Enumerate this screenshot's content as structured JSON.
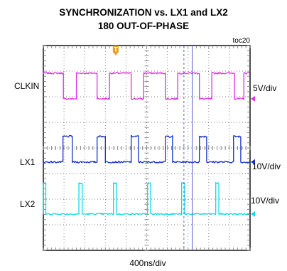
{
  "chart_data": {
    "type": "line",
    "title": "SYNCHRONIZATION vs. LX1 and LX2",
    "subtitle": "180 OUT-OF-PHASE",
    "figure_id": "toc20",
    "xlabel": "400ns/div",
    "x_divisions": 10,
    "y_divisions": 8,
    "grid": true,
    "colors": {
      "grid": "#7f7f7f",
      "frame": "#000000",
      "clkin": "#e030e0",
      "lx1": "#1530c8",
      "lx2": "#10d8e8",
      "trigger": "#e8a020",
      "cursor": "#5a5ad0"
    },
    "trigger_marker": {
      "label": "T",
      "x_div": 3.5
    },
    "cursors_x_div": [
      6.8,
      7.2
    ],
    "series": [
      {
        "name": "CLKIN",
        "scale": "5V/div",
        "color": "#e030e0",
        "baseline_div": 5.92,
        "amplitude_div": 1.0,
        "noise_div": 0.03,
        "segments": [
          {
            "x": 0,
            "level": 1
          },
          {
            "x": 0.97,
            "level": 0
          },
          {
            "x": 1.6,
            "level": 1
          },
          {
            "x": 2.6,
            "level": 0
          },
          {
            "x": 3.2,
            "level": 1
          },
          {
            "x": 4.25,
            "level": 0
          },
          {
            "x": 4.85,
            "level": 1
          },
          {
            "x": 5.9,
            "level": 0
          },
          {
            "x": 6.5,
            "level": 1
          },
          {
            "x": 7.55,
            "level": 0
          },
          {
            "x": 8.15,
            "level": 1
          },
          {
            "x": 9.25,
            "level": 0
          },
          {
            "x": 9.7,
            "level": 1
          }
        ]
      },
      {
        "name": "LX1",
        "scale": "10V/div",
        "color": "#1530c8",
        "baseline_div": 3.45,
        "amplitude_div": 1.0,
        "noise_div": 0.035,
        "pulses": [
          {
            "start": 0.95,
            "end": 1.4
          },
          {
            "start": 2.6,
            "end": 3.0
          },
          {
            "start": 4.25,
            "end": 4.6
          },
          {
            "start": 5.9,
            "end": 6.25
          },
          {
            "start": 7.55,
            "end": 7.9
          },
          {
            "start": 9.2,
            "end": 9.55
          }
        ]
      },
      {
        "name": "LX2",
        "scale": "10V/div",
        "color": "#10d8e8",
        "baseline_div": 1.42,
        "amplitude_div": 1.2,
        "noise_div": 0.03,
        "pulses": [
          {
            "start": 0.0,
            "end": 0.12
          },
          {
            "start": 1.72,
            "end": 1.88
          },
          {
            "start": 3.39,
            "end": 3.54
          },
          {
            "start": 5.04,
            "end": 5.19
          },
          {
            "start": 6.69,
            "end": 6.84
          },
          {
            "start": 8.34,
            "end": 8.49
          }
        ]
      }
    ]
  }
}
